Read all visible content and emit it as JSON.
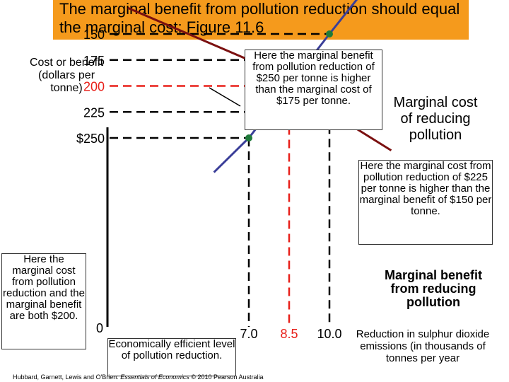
{
  "header": {
    "title": "The marginal benefit from pollution reduction should equal the marginal cost: Figure 11.6",
    "title_bg": "#f59a1c"
  },
  "annotations": {
    "benefit_note": "Here the marginal benefit from pollution reduction of $250 per tonne is higher than the marginal cost of $175 per tonne.",
    "cost_note": "Here the marginal cost from pollution reduction of $225 per tonne is higher than the marginal benefit of $150 per tonne.",
    "optimum_note": "Here the marginal cost from pollution reduction and the marginal benefit are both $200.",
    "efficient_note": "Economically efficient level of pollution reduction."
  },
  "footer": {
    "credit_prefix": "Hubbard, Garnett, Lewis and O'Brien: ",
    "credit_book": "Essentials of Economics",
    "credit_suffix": " © 2010 Pearson Australia"
  },
  "colors": {
    "marginal_cost": "#7b1010",
    "marginal_benefit": "#3b3f99",
    "point_green": "#1f7a3a",
    "optimum_red": "#e8201a",
    "guide_black": "#000000"
  },
  "chart_data": {
    "type": "line",
    "ylabel": "Cost or benefit (dollars per tonne)",
    "xlabel": "Reduction in sulphur dioxide emissions (in thousands of tonnes per year",
    "y_ticks": [
      {
        "label": "$250",
        "value": 250
      },
      {
        "label": "225",
        "value": 225
      },
      {
        "label": "200",
        "value": 200,
        "highlight": true
      },
      {
        "label": "175",
        "value": 175
      },
      {
        "label": "150",
        "value": 150
      }
    ],
    "x_ticks": [
      {
        "label": "7.0",
        "value": 7.0
      },
      {
        "label": "8.5",
        "value": 8.5,
        "highlight": true
      },
      {
        "label": "10.0",
        "value": 10.0
      }
    ],
    "origin_label": "0",
    "series": [
      {
        "name": "Marginal cost of reducing pollution",
        "points": [
          [
            2.5,
            125
          ],
          [
            7.0,
            175
          ],
          [
            8.5,
            200
          ],
          [
            10.0,
            225
          ],
          [
            12.3,
            262
          ]
        ]
      },
      {
        "name": "Marginal benefit from reducing pollution",
        "points": [
          [
            5.7,
            283
          ],
          [
            7.0,
            250
          ],
          [
            8.5,
            200
          ],
          [
            10.0,
            150
          ],
          [
            12.0,
            85
          ]
        ]
      }
    ],
    "marked_points": [
      {
        "x": 7.0,
        "y": 250,
        "kind": "green"
      },
      {
        "x": 7.0,
        "y": 175,
        "kind": "green"
      },
      {
        "x": 10.0,
        "y": 225,
        "kind": "green"
      },
      {
        "x": 10.0,
        "y": 150,
        "kind": "green"
      },
      {
        "x": 8.5,
        "y": 200,
        "kind": "red"
      }
    ],
    "grid": false
  }
}
